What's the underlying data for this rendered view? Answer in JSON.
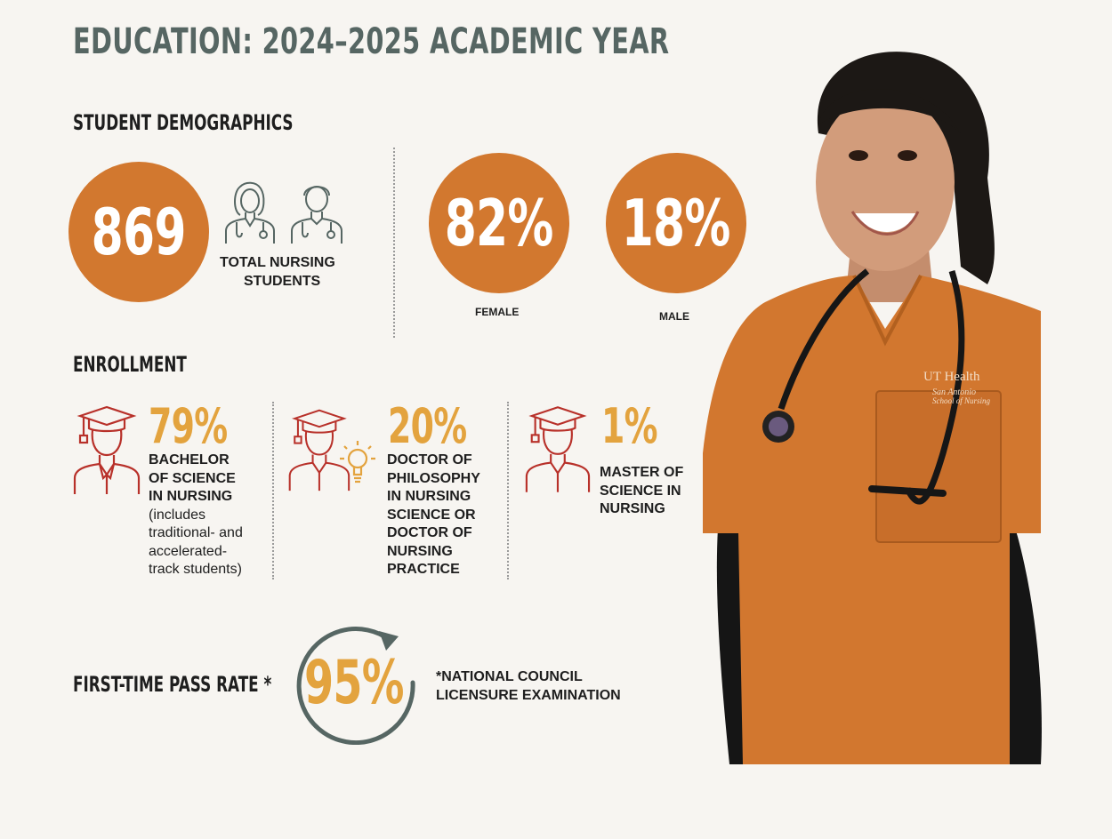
{
  "title": "EDUCATION: 2024–2025 ACADEMIC YEAR",
  "demographics": {
    "heading": "STUDENT DEMOGRAPHICS",
    "total": "869",
    "total_label_1": "TOTAL NURSING",
    "total_label_2": "STUDENTS",
    "female_pct": "82%",
    "female_label": "FEMALE",
    "male_pct": "18%",
    "male_label": "MALE"
  },
  "enrollment": {
    "heading": "ENROLLMENT",
    "items": [
      {
        "pct": "79%",
        "title_lines": [
          "BACHELOR",
          "OF SCIENCE",
          "IN NURSING"
        ],
        "note_lines": [
          "(includes",
          "traditional- and",
          "accelerated-",
          "track students)"
        ]
      },
      {
        "pct": "20%",
        "title_lines": [
          "DOCTOR OF",
          "PHILOSOPHY",
          "IN NURSING",
          "SCIENCE OR",
          "DOCTOR OF",
          "NURSING",
          "PRACTICE"
        ]
      },
      {
        "pct": "1%",
        "title_lines": [
          "MASTER OF",
          "SCIENCE IN",
          "NURSING"
        ]
      }
    ]
  },
  "pass_rate": {
    "label": "FIRST-TIME PASS RATE *",
    "value": "95%",
    "footnote_1": "*NATIONAL COUNCIL",
    "footnote_2": "LICENSURE EXAMINATION"
  },
  "photo": {
    "logo_line_1": "UT Health",
    "logo_line_2": "San Antonio",
    "logo_line_3": "School of Nursing"
  },
  "colors": {
    "orange": "#d2782f",
    "gold": "#e3a33e",
    "slate": "#566663",
    "red_icon": "#b8312a"
  },
  "icons": [
    "nurse-female-icon",
    "nurse-male-icon",
    "graduate-icon",
    "lightbulb-icon",
    "circular-arrow-icon"
  ]
}
